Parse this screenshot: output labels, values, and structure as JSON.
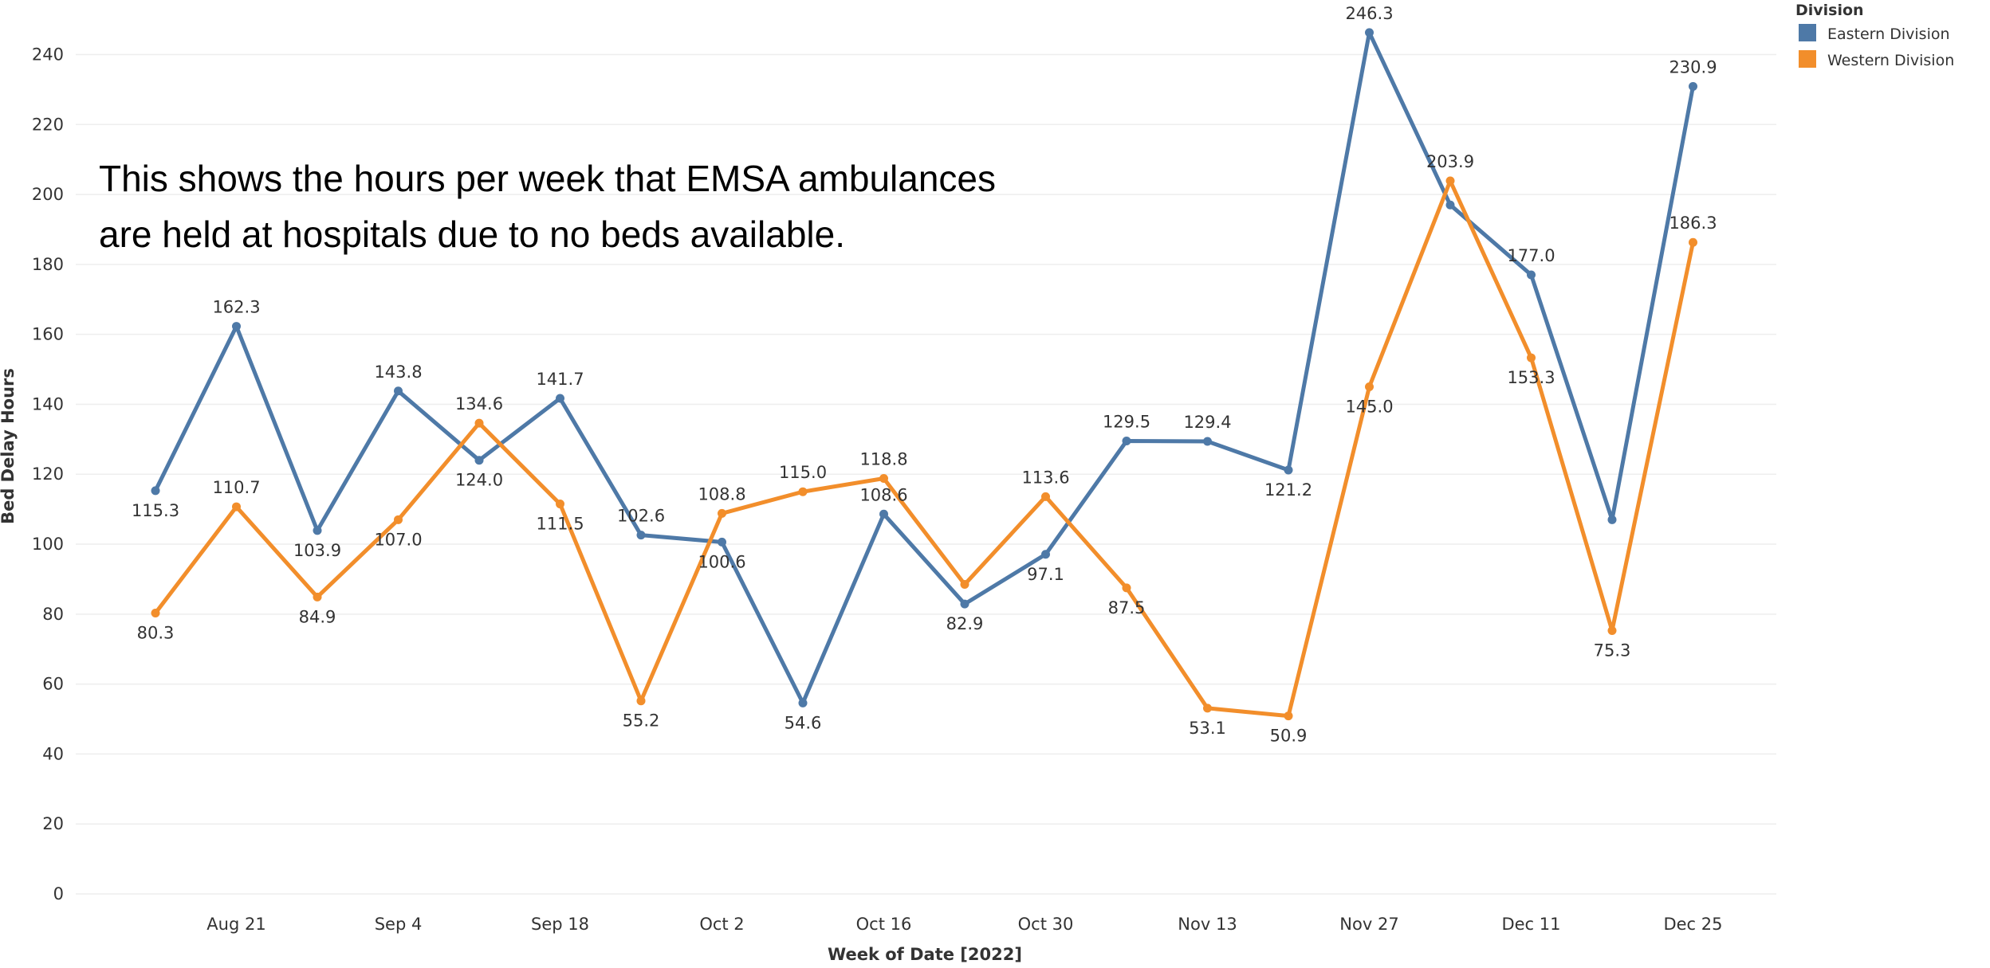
{
  "chart_data": {
    "type": "line",
    "x": [
      "Aug 14",
      "Aug 21",
      "Aug 28",
      "Sep 4",
      "Sep 11",
      "Sep 18",
      "Sep 25",
      "Oct 2",
      "Oct 9",
      "Oct 16",
      "Oct 23",
      "Oct 30",
      "Nov 6",
      "Nov 13",
      "Nov 20",
      "Nov 27",
      "Dec 4",
      "Dec 11",
      "Dec 18",
      "Dec 25"
    ],
    "x_ticks": [
      "Aug 21",
      "Sep 4",
      "Sep 18",
      "Oct 2",
      "Oct 16",
      "Oct 30",
      "Nov 13",
      "Nov 27",
      "Dec 11",
      "Dec 25"
    ],
    "xlabel": "Week of Date [2022]",
    "ylabel": "Bed Delay Hours",
    "ylim": [
      0,
      250
    ],
    "y_ticks": [
      0,
      20,
      40,
      60,
      80,
      100,
      120,
      140,
      160,
      180,
      200,
      220,
      240
    ],
    "grid": true,
    "legend": {
      "title": "Division",
      "placement": "top-right"
    },
    "annotation": [
      "This shows the hours per week that EMSA ambulances",
      "are held at hospitals due to no beds available."
    ],
    "series": [
      {
        "name": "Eastern Division",
        "color": "#4e79a7",
        "values": [
          115.3,
          162.3,
          103.9,
          143.8,
          124.0,
          141.7,
          102.6,
          100.6,
          54.6,
          108.6,
          82.9,
          97.1,
          129.5,
          129.4,
          121.2,
          246.3,
          197.0,
          177.0,
          107.0,
          230.9
        ],
        "labels": [
          "115.3",
          "162.3",
          "103.9",
          "143.8",
          "124.0",
          "141.7",
          "102.6",
          "100.6",
          "54.6",
          "108.6",
          "82.9",
          "97.1",
          "129.5",
          "129.4",
          "121.2",
          "246.3",
          "",
          "177.0",
          "",
          "230.9"
        ]
      },
      {
        "name": "Western Division",
        "color": "#f28e2b",
        "values": [
          80.3,
          110.7,
          84.9,
          107.0,
          134.6,
          111.5,
          55.2,
          108.8,
          115.0,
          118.8,
          88.5,
          113.6,
          87.5,
          53.1,
          50.9,
          145.0,
          203.9,
          153.3,
          75.3,
          186.3
        ],
        "labels": [
          "80.3",
          "110.7",
          "84.9",
          "107.0",
          "134.6",
          "111.5",
          "55.2",
          "108.8",
          "115.0",
          "118.8",
          "",
          "113.6",
          "87.5",
          "53.1",
          "50.9",
          "145.0",
          "203.9",
          "153.3",
          "75.3",
          "186.3"
        ]
      }
    ]
  }
}
